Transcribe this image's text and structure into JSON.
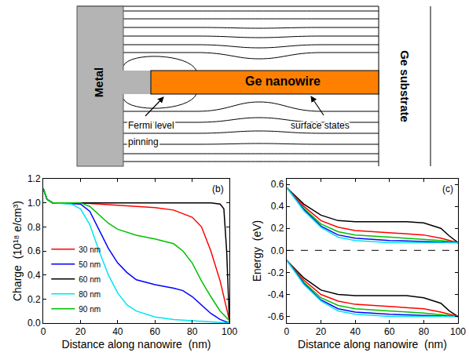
{
  "diagram": {
    "labels": {
      "metal": "Metal",
      "nanowire": "Ge nanowire",
      "substrate": "Ge substrate",
      "fermi": "Fermi level",
      "pinning": "pinning",
      "surface": "surface states"
    }
  },
  "chart_data": [
    {
      "type": "line",
      "title": "(b)",
      "xlabel": "Distance along nanowire  (nm)",
      "ylabel": "Charge  (10¹⁸ e/cm³)",
      "xlim": [
        0,
        100
      ],
      "xticks": [
        0,
        20,
        40,
        60,
        80,
        100
      ],
      "ylim": [
        0,
        1.2
      ],
      "yticks": [
        {
          "value": 0,
          "label": "0.0"
        },
        0.2,
        0.4,
        0.6,
        0.8,
        {
          "value": 1,
          "label": "1.0"
        },
        1.2
      ],
      "grid": false,
      "legend": "lower left",
      "series": [
        {
          "name": "30 nm",
          "color": "#ff0000",
          "x": [
            0,
            2,
            5,
            20,
            40,
            60,
            70,
            80,
            85,
            90,
            95,
            100
          ],
          "values": [
            1.12,
            1.03,
            1.0,
            1.0,
            0.98,
            0.96,
            0.94,
            0.88,
            0.8,
            0.6,
            0.35,
            0.02
          ]
        },
        {
          "name": "50 nm",
          "color": "#0000ff",
          "x": [
            0,
            2,
            5,
            20,
            25,
            30,
            35,
            40,
            45,
            50,
            60,
            70,
            75,
            80,
            85,
            90,
            95,
            100
          ],
          "values": [
            1.12,
            1.03,
            1.0,
            0.99,
            0.93,
            0.78,
            0.62,
            0.5,
            0.42,
            0.36,
            0.32,
            0.29,
            0.27,
            0.22,
            0.15,
            0.08,
            0.03,
            0.0
          ]
        },
        {
          "name": "60 nm",
          "color": "#000000",
          "x": [
            0,
            2,
            5,
            90,
            95,
            97,
            98.5,
            99.5,
            100
          ],
          "values": [
            1.12,
            1.03,
            1.0,
            1.0,
            0.99,
            0.95,
            0.6,
            0.2,
            0.0
          ]
        },
        {
          "name": "80 nm",
          "color": "#00e5ee",
          "x": [
            0,
            2,
            5,
            15,
            20,
            25,
            30,
            35,
            40,
            45,
            50,
            60,
            70,
            80,
            100
          ],
          "values": [
            1.12,
            1.03,
            1.0,
            0.99,
            0.95,
            0.82,
            0.6,
            0.4,
            0.25,
            0.15,
            0.1,
            0.05,
            0.03,
            0.02,
            0.0
          ]
        },
        {
          "name": "90 nm",
          "color": "#00c000",
          "x": [
            0,
            2,
            5,
            20,
            25,
            30,
            35,
            40,
            50,
            60,
            70,
            75,
            80,
            85,
            90,
            95,
            100
          ],
          "values": [
            1.12,
            1.03,
            1.0,
            1.0,
            0.97,
            0.9,
            0.83,
            0.78,
            0.73,
            0.7,
            0.66,
            0.6,
            0.5,
            0.35,
            0.22,
            0.1,
            0.02
          ]
        }
      ]
    },
    {
      "type": "line",
      "title": "(c)",
      "xlabel": "Distance along nanowire  (nm)",
      "ylabel": "Energy  (eV)",
      "xlim": [
        0,
        100
      ],
      "xticks": [
        0,
        20,
        40,
        60,
        80,
        100
      ],
      "ylim": [
        -0.66,
        0.65
      ],
      "yticks": [
        -0.6,
        -0.4,
        -0.2,
        {
          "value": 0,
          "label": "0.0"
        },
        0.2,
        0.4,
        0.6
      ],
      "grid": false,
      "hline": {
        "value": 0,
        "line_style": "dash",
        "color": "#000000"
      },
      "series": [
        {
          "color": "#000000",
          "x": [
            0,
            10,
            20,
            30,
            40,
            60,
            70,
            80,
            90,
            95,
            100
          ],
          "values": [
            0.57,
            0.42,
            0.32,
            0.27,
            0.26,
            0.26,
            0.26,
            0.25,
            0.2,
            0.13,
            0.07
          ]
        },
        {
          "color": "#ff0000",
          "x": [
            0,
            10,
            20,
            30,
            40,
            60,
            80,
            90,
            100
          ],
          "values": [
            0.57,
            0.4,
            0.27,
            0.21,
            0.18,
            0.16,
            0.14,
            0.11,
            0.07
          ]
        },
        {
          "color": "#00c000",
          "x": [
            0,
            10,
            20,
            30,
            40,
            60,
            80,
            90,
            100
          ],
          "values": [
            0.57,
            0.38,
            0.24,
            0.17,
            0.14,
            0.12,
            0.1,
            0.09,
            0.07
          ]
        },
        {
          "color": "#0000ff",
          "x": [
            0,
            10,
            20,
            30,
            40,
            60,
            80,
            100
          ],
          "values": [
            0.57,
            0.37,
            0.22,
            0.14,
            0.11,
            0.09,
            0.08,
            0.07
          ]
        },
        {
          "color": "#00e5ee",
          "x": [
            0,
            10,
            20,
            30,
            40,
            60,
            80,
            100
          ],
          "values": [
            0.57,
            0.36,
            0.21,
            0.12,
            0.09,
            0.07,
            0.07,
            0.07
          ]
        },
        {
          "color": "#000000",
          "x": [
            0,
            10,
            20,
            30,
            40,
            70,
            80,
            90,
            95,
            100
          ],
          "values": [
            -0.09,
            -0.25,
            -0.36,
            -0.4,
            -0.41,
            -0.41,
            -0.43,
            -0.48,
            -0.55,
            -0.6
          ]
        },
        {
          "color": "#ff0000",
          "x": [
            0,
            10,
            20,
            30,
            40,
            60,
            80,
            90,
            100
          ],
          "values": [
            -0.09,
            -0.27,
            -0.4,
            -0.46,
            -0.49,
            -0.51,
            -0.53,
            -0.56,
            -0.6
          ]
        },
        {
          "color": "#00c000",
          "x": [
            0,
            10,
            20,
            30,
            40,
            60,
            80,
            100
          ],
          "values": [
            -0.09,
            -0.29,
            -0.43,
            -0.5,
            -0.53,
            -0.55,
            -0.57,
            -0.6
          ]
        },
        {
          "color": "#0000ff",
          "x": [
            0,
            10,
            20,
            30,
            40,
            60,
            80,
            100
          ],
          "values": [
            -0.09,
            -0.3,
            -0.45,
            -0.53,
            -0.56,
            -0.58,
            -0.59,
            -0.6
          ]
        },
        {
          "color": "#00e5ee",
          "x": [
            0,
            10,
            20,
            30,
            40,
            60,
            80,
            100
          ],
          "values": [
            -0.09,
            -0.31,
            -0.46,
            -0.55,
            -0.58,
            -0.6,
            -0.6,
            -0.6
          ]
        }
      ]
    }
  ]
}
